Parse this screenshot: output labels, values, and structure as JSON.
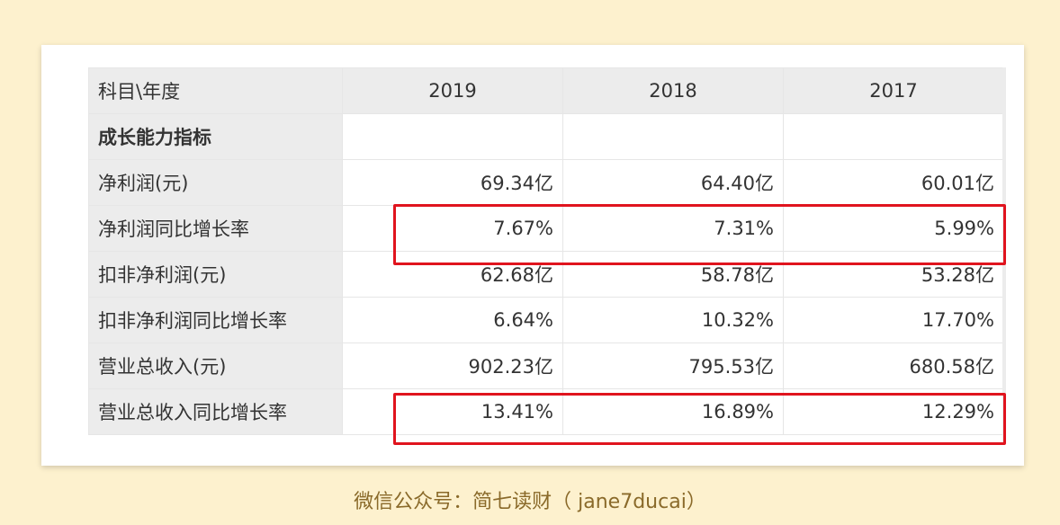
{
  "table": {
    "header": {
      "label": "科目\\年度",
      "years": [
        "2019",
        "2018",
        "2017"
      ]
    },
    "section_title": "成长能力指标",
    "rows": [
      {
        "label": "净利润(元)",
        "values": [
          "69.34亿",
          "64.40亿",
          "60.01亿"
        ],
        "highlighted": false
      },
      {
        "label": "净利润同比增长率",
        "values": [
          "7.67%",
          "7.31%",
          "5.99%"
        ],
        "highlighted": true
      },
      {
        "label": "扣非净利润(元)",
        "values": [
          "62.68亿",
          "58.78亿",
          "53.28亿"
        ],
        "highlighted": false
      },
      {
        "label": "扣非净利润同比增长率",
        "values": [
          "6.64%",
          "10.32%",
          "17.70%"
        ],
        "highlighted": false
      },
      {
        "label": "营业总收入(元)",
        "values": [
          "902.23亿",
          "795.53亿",
          "680.58亿"
        ],
        "highlighted": false
      },
      {
        "label": "营业总收入同比增长率",
        "values": [
          "13.41%",
          "16.89%",
          "12.29%"
        ],
        "highlighted": true
      }
    ]
  },
  "caption": "微信公众号：简七读财（ jane7ducai）",
  "colors": {
    "background": "#fdf1ce",
    "highlight_border": "#e0141e",
    "caption": "#8a6a2a"
  }
}
